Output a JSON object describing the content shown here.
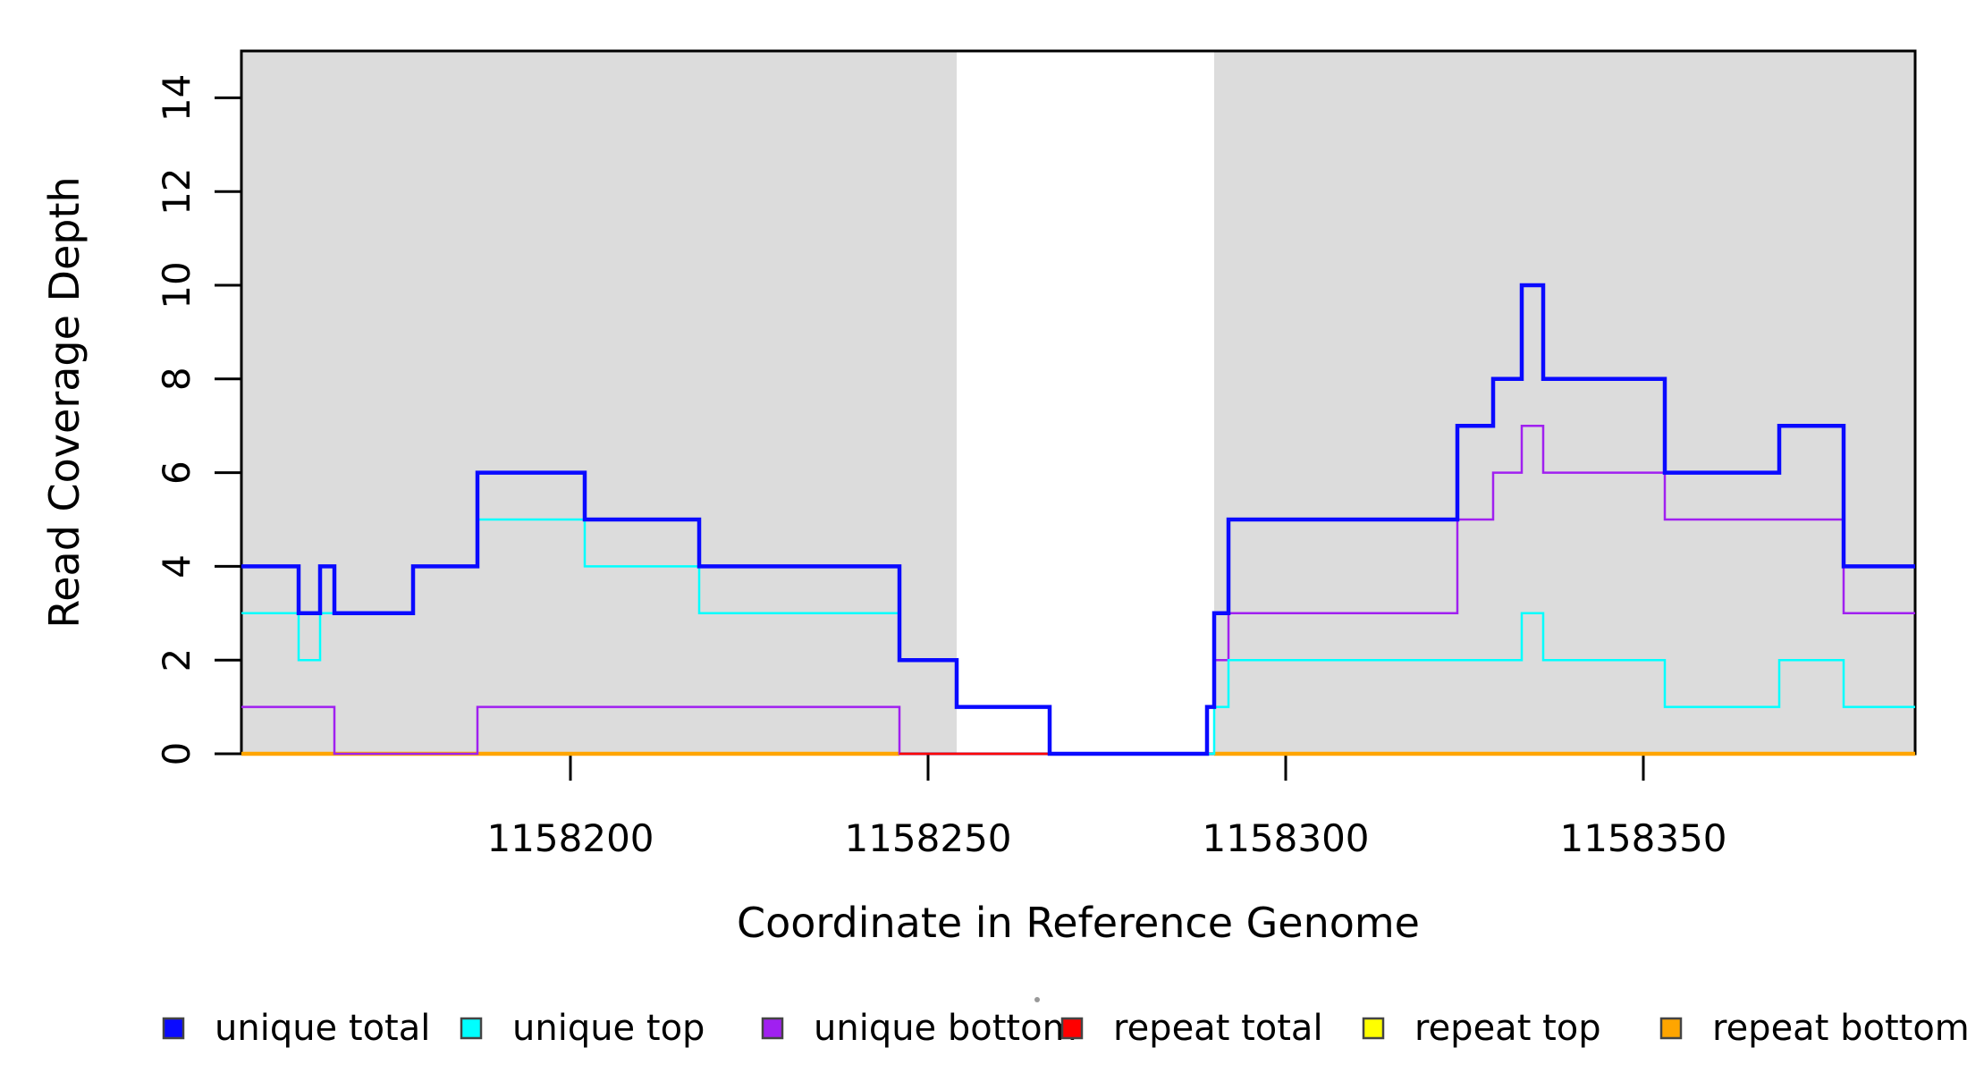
{
  "chart_data": {
    "type": "line",
    "subtype": "step-coverage",
    "title": "",
    "xlabel": "Coordinate in Reference Genome",
    "ylabel": "Read Coverage Depth",
    "xlim": [
      1158154,
      1158388
    ],
    "ylim": [
      0,
      15
    ],
    "x_ticks": [
      1158200,
      1158250,
      1158300,
      1158350
    ],
    "y_ticks": [
      0,
      2,
      4,
      6,
      8,
      10,
      12,
      14
    ],
    "grid": false,
    "background_shading": {
      "color": "#dcdcdc",
      "regions": [
        [
          1158154,
          1158254
        ],
        [
          1158290,
          1158388
        ]
      ]
    },
    "series": [
      {
        "name": "unique total",
        "color": "#0a0aff",
        "line_width": 4.5,
        "steps": [
          [
            1158154,
            4
          ],
          [
            1158162,
            3
          ],
          [
            1158165,
            4
          ],
          [
            1158167,
            3
          ],
          [
            1158178,
            4
          ],
          [
            1158187,
            6
          ],
          [
            1158202,
            5
          ],
          [
            1158218,
            4
          ],
          [
            1158246,
            2
          ],
          [
            1158254,
            1
          ],
          [
            1158267,
            0
          ],
          [
            1158289,
            1
          ],
          [
            1158290,
            3
          ],
          [
            1158292,
            5
          ],
          [
            1158324,
            7
          ],
          [
            1158329,
            8
          ],
          [
            1158333,
            10
          ],
          [
            1158336,
            8
          ],
          [
            1158353,
            6
          ],
          [
            1158369,
            7
          ],
          [
            1158378,
            4
          ]
        ]
      },
      {
        "name": "unique top",
        "color": "#00ffff",
        "line_width": 2.5,
        "steps": [
          [
            1158154,
            3
          ],
          [
            1158162,
            2
          ],
          [
            1158165,
            3
          ],
          [
            1158178,
            4
          ],
          [
            1158187,
            5
          ],
          [
            1158202,
            4
          ],
          [
            1158218,
            3
          ],
          [
            1158246,
            2
          ],
          [
            1158254,
            1
          ],
          [
            1158267,
            0
          ],
          [
            1158290,
            1
          ],
          [
            1158292,
            2
          ],
          [
            1158333,
            3
          ],
          [
            1158336,
            2
          ],
          [
            1158353,
            1
          ],
          [
            1158369,
            2
          ],
          [
            1158378,
            1
          ]
        ]
      },
      {
        "name": "unique bottom",
        "color": "#a020f0",
        "line_width": 2.5,
        "steps": [
          [
            1158154,
            1
          ],
          [
            1158167,
            0
          ],
          [
            1158187,
            1
          ],
          [
            1158246,
            0
          ],
          [
            1158289,
            1
          ],
          [
            1158290,
            2
          ],
          [
            1158292,
            3
          ],
          [
            1158324,
            5
          ],
          [
            1158329,
            6
          ],
          [
            1158333,
            7
          ],
          [
            1158336,
            6
          ],
          [
            1158353,
            5
          ],
          [
            1158378,
            3
          ]
        ]
      },
      {
        "name": "repeat total",
        "color": "#ff0000",
        "line_width": 2.5,
        "value": 0,
        "visible_segments": [
          [
            1158246,
            1158267
          ]
        ]
      },
      {
        "name": "repeat top",
        "color": "#ffff00",
        "line_width": 2.5,
        "value": 0,
        "visible_segments": [
          [
            1158154,
            1158246
          ],
          [
            1158290,
            1158388
          ]
        ]
      },
      {
        "name": "repeat bottom",
        "color": "#ffa500",
        "line_width": 4.5,
        "value": 0,
        "visible_segments": [
          [
            1158154,
            1158246
          ],
          [
            1158290,
            1158388
          ]
        ]
      }
    ],
    "legend": {
      "position": "bottom",
      "entries": [
        {
          "label": "unique total",
          "color": "#0a0aff"
        },
        {
          "label": "unique top",
          "color": "#00ffff"
        },
        {
          "label": "unique bottom",
          "color": "#a020f0"
        },
        {
          "label": "repeat total",
          "color": "#ff0000"
        },
        {
          "label": "repeat top",
          "color": "#ffff00"
        },
        {
          "label": "repeat bottom",
          "color": "#ffa500"
        }
      ]
    }
  }
}
